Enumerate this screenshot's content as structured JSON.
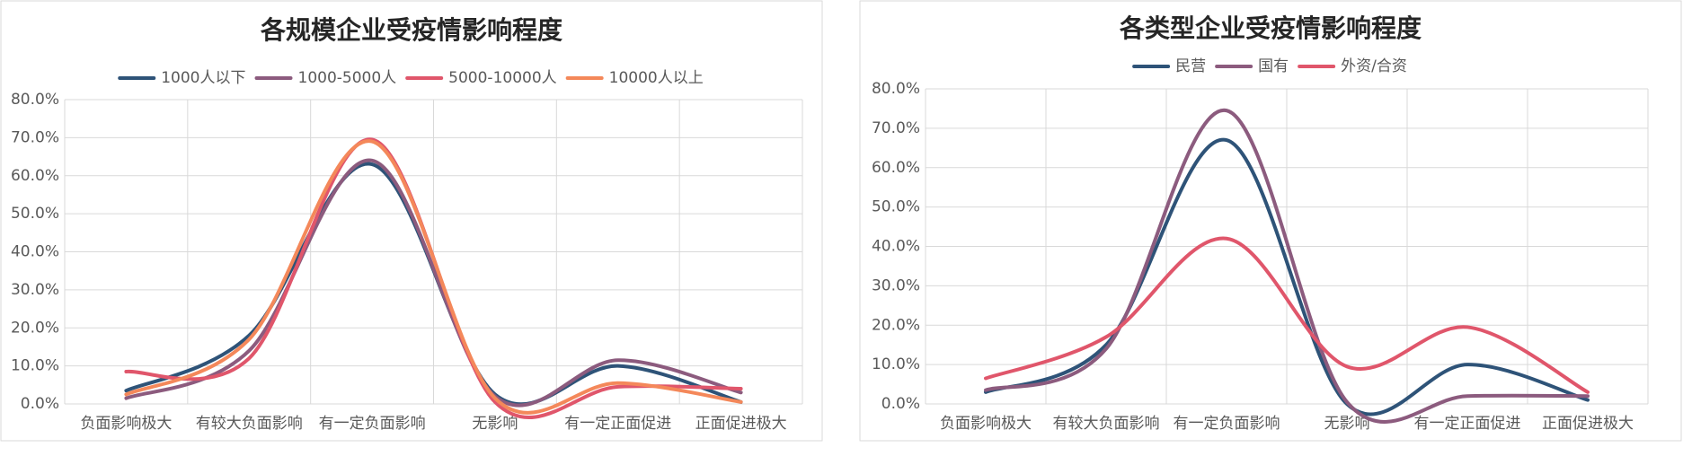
{
  "chart_data": [
    {
      "type": "line",
      "title": "各规模企业受疫情影响程度",
      "categories": [
        "负面影响极大",
        "有较大负面影响",
        "有一定负面影响",
        "无影响",
        "有一定正面促进",
        "正面促进极大"
      ],
      "series": [
        {
          "name": "1000人以下",
          "color": "#2e5378",
          "values": [
            3.5,
            18,
            63,
            2.5,
            10,
            0.5
          ]
        },
        {
          "name": "1000-5000人",
          "color": "#8c5b7e",
          "values": [
            1.5,
            14,
            64,
            2,
            11.5,
            3
          ]
        },
        {
          "name": "5000-10000人",
          "color": "#e0566b",
          "values": [
            8.5,
            12,
            69.5,
            0.5,
            4.5,
            4
          ]
        },
        {
          "name": "10000人以上",
          "color": "#f4885a",
          "values": [
            2.5,
            17,
            69,
            1.5,
            5.5,
            0.5
          ]
        }
      ],
      "ylim": [
        0,
        80
      ],
      "yticks": [
        {
          "value": 0,
          "label": "0.0%"
        },
        {
          "value": 10,
          "label": "10.0%"
        },
        {
          "value": 20,
          "label": "20.0%"
        },
        {
          "value": 30,
          "label": "30.0%"
        },
        {
          "value": 40,
          "label": "40.0%"
        },
        {
          "value": 50,
          "label": "50.0%"
        },
        {
          "value": 60,
          "label": "60.0%"
        },
        {
          "value": 70,
          "label": "70.0%"
        },
        {
          "value": 80,
          "label": "80.0%"
        }
      ],
      "grid": true,
      "smooth": true,
      "legend": "top"
    },
    {
      "type": "line",
      "title": "各类型企业受疫情影响程度",
      "categories": [
        "负面影响极大",
        "有较大负面影响",
        "有一定负面影响",
        "无影响",
        "有一定正面促进",
        "正面促进极大"
      ],
      "series": [
        {
          "name": "民营",
          "color": "#2e5378",
          "values": [
            3,
            15,
            67,
            0,
            10,
            1
          ]
        },
        {
          "name": "国有",
          "color": "#8c5b7e",
          "values": [
            3.5,
            14,
            74.5,
            0.5,
            2,
            2
          ]
        },
        {
          "name": "外资/合资",
          "color": "#e0566b",
          "values": [
            6.5,
            17,
            42,
            9.5,
            19.5,
            3
          ]
        }
      ],
      "ylim": [
        0,
        80
      ],
      "yticks": [
        {
          "value": 0,
          "label": "0.0%"
        },
        {
          "value": 10,
          "label": "10.0%"
        },
        {
          "value": 20,
          "label": "20.0%"
        },
        {
          "value": 30,
          "label": "30.0%"
        },
        {
          "value": 40,
          "label": "40.0%"
        },
        {
          "value": 50,
          "label": "50.0%"
        },
        {
          "value": 60,
          "label": "60.0%"
        },
        {
          "value": 70,
          "label": "70.0%"
        },
        {
          "value": 80,
          "label": "80.0%"
        }
      ],
      "grid": true,
      "smooth": true,
      "legend": "top"
    }
  ]
}
